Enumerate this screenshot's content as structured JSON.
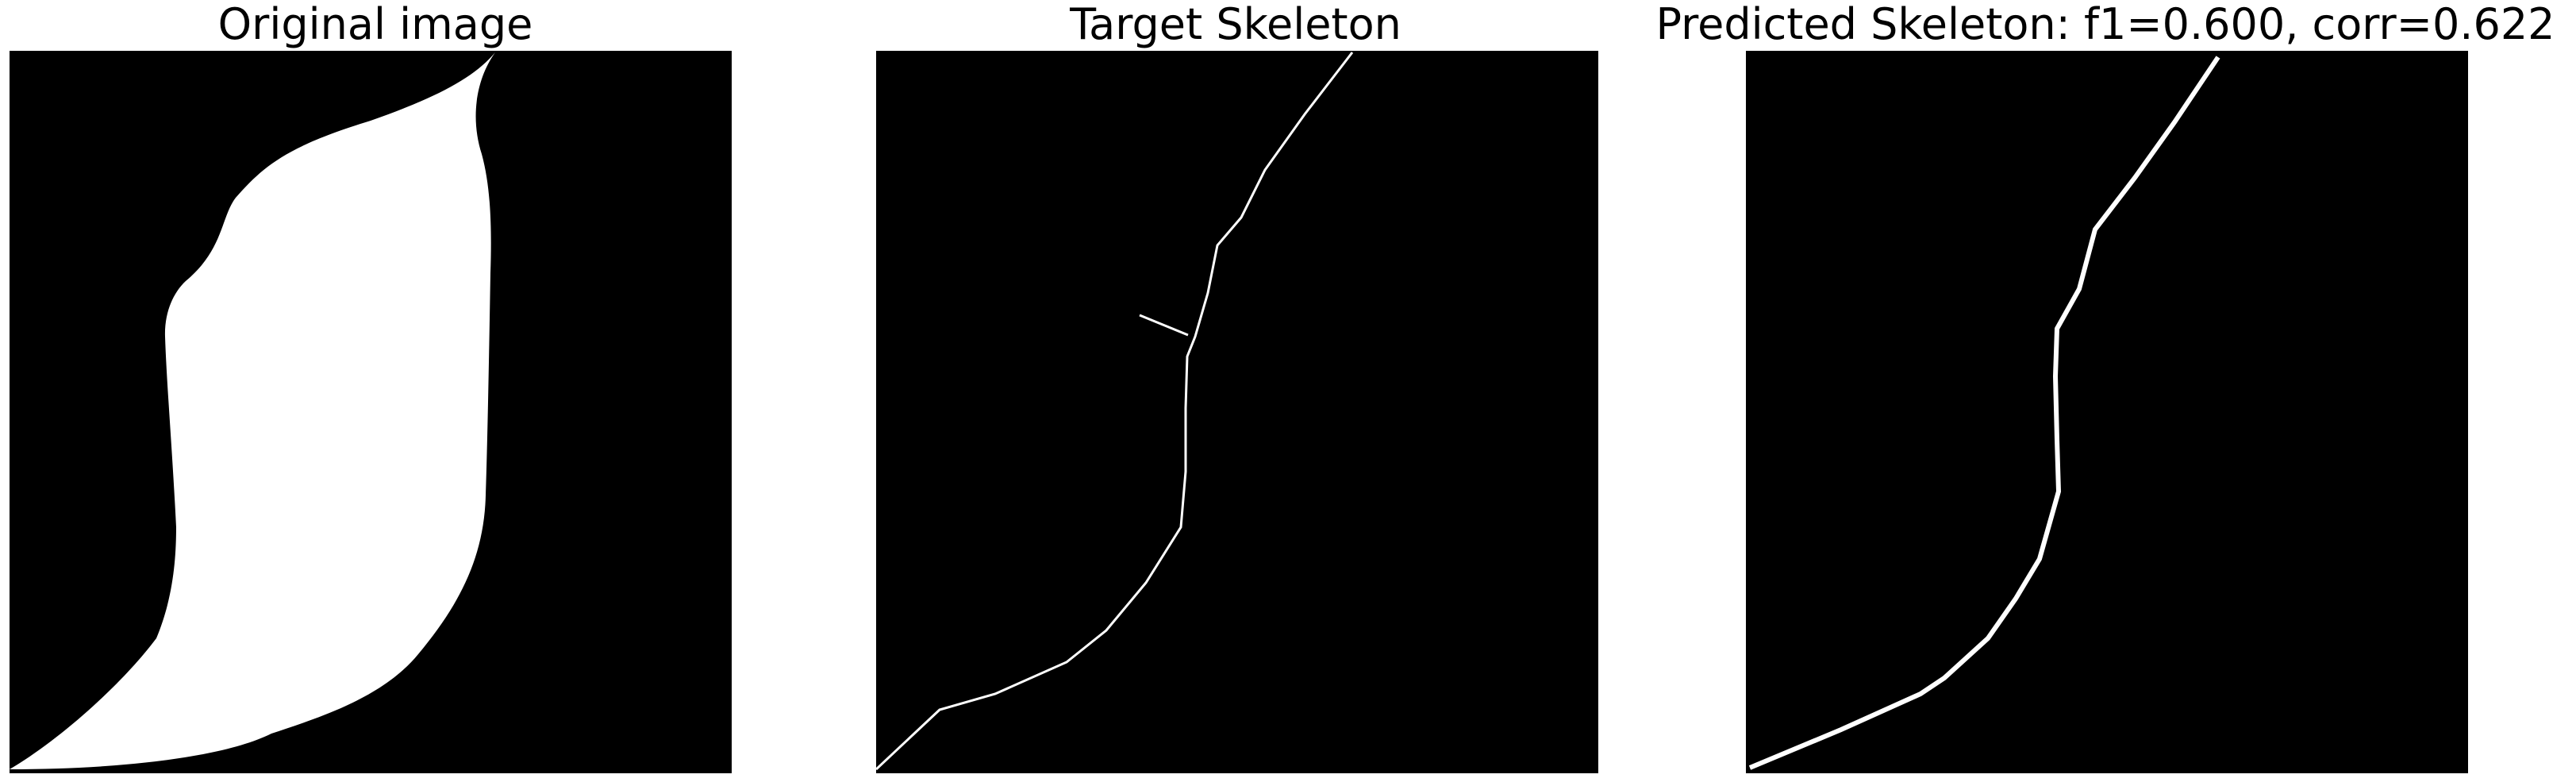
{
  "panels": [
    {
      "title": "Original image"
    },
    {
      "title": "Target Skeleton"
    },
    {
      "title": "Predicted Skeleton: f1=0.600, corr=0.622"
    }
  ],
  "colors": {
    "background": "#000000",
    "foreground": "#ffffff",
    "page": "#ffffff",
    "text": "#000000"
  }
}
